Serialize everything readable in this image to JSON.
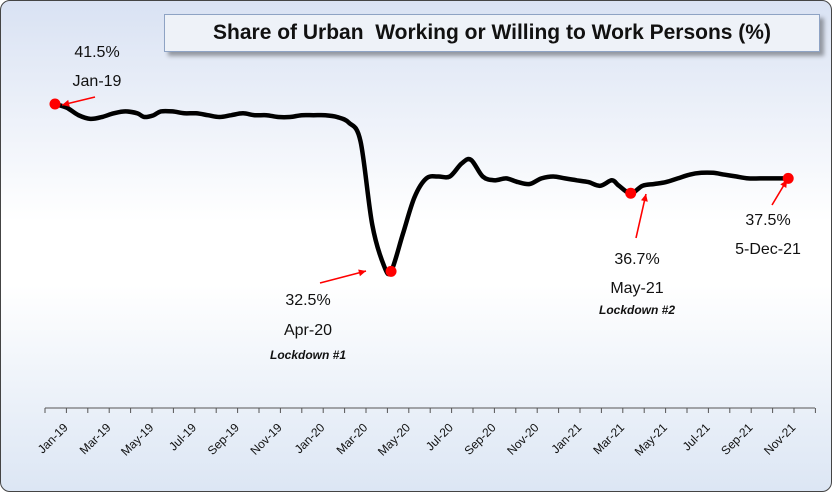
{
  "chart_data": {
    "type": "line",
    "title": "Share of Urban  Working or Willing to Work Persons (%)",
    "xlabel": "",
    "ylabel": "",
    "ylim": [
      30,
      45
    ],
    "x_tick_labels": [
      "Jan-19",
      "Mar-19",
      "May-19",
      "Jul-19",
      "Sep-19",
      "Nov-19",
      "Jan-20",
      "Mar-20",
      "May-20",
      "Jul-20",
      "Sep-20",
      "Nov-20",
      "Jan-21",
      "Mar-21",
      "May-21",
      "Jul-21",
      "Sep-21",
      "Nov-21"
    ],
    "series": [
      {
        "name": "Share of Urban Working or Willing to Work Persons (%)",
        "color": "#000000",
        "points": [
          {
            "m": 0.0,
            "v": 41.5
          },
          {
            "m": 0.5,
            "v": 41.3
          },
          {
            "m": 1.0,
            "v": 40.9
          },
          {
            "m": 1.5,
            "v": 40.7
          },
          {
            "m": 2.0,
            "v": 40.8
          },
          {
            "m": 2.5,
            "v": 41.0
          },
          {
            "m": 3.0,
            "v": 41.1
          },
          {
            "m": 3.5,
            "v": 41.0
          },
          {
            "m": 3.8,
            "v": 40.8
          },
          {
            "m": 4.2,
            "v": 40.9
          },
          {
            "m": 4.5,
            "v": 41.1
          },
          {
            "m": 5.0,
            "v": 41.1
          },
          {
            "m": 5.5,
            "v": 41.0
          },
          {
            "m": 6.0,
            "v": 41.0
          },
          {
            "m": 6.5,
            "v": 40.9
          },
          {
            "m": 7.0,
            "v": 40.8
          },
          {
            "m": 7.5,
            "v": 40.9
          },
          {
            "m": 8.0,
            "v": 41.0
          },
          {
            "m": 8.5,
            "v": 40.9
          },
          {
            "m": 9.0,
            "v": 40.9
          },
          {
            "m": 9.5,
            "v": 40.8
          },
          {
            "m": 10.0,
            "v": 40.8
          },
          {
            "m": 10.5,
            "v": 40.9
          },
          {
            "m": 11.0,
            "v": 40.9
          },
          {
            "m": 11.5,
            "v": 40.9
          },
          {
            "m": 12.0,
            "v": 40.8
          },
          {
            "m": 12.5,
            "v": 40.5
          },
          {
            "m": 13.0,
            "v": 39.5
          },
          {
            "m": 13.5,
            "v": 35.0
          },
          {
            "m": 14.0,
            "v": 32.8
          },
          {
            "m": 14.3,
            "v": 32.5
          },
          {
            "m": 14.8,
            "v": 34.5
          },
          {
            "m": 15.3,
            "v": 36.5
          },
          {
            "m": 15.8,
            "v": 37.5
          },
          {
            "m": 16.3,
            "v": 37.6
          },
          {
            "m": 16.8,
            "v": 37.6
          },
          {
            "m": 17.3,
            "v": 38.3
          },
          {
            "m": 17.7,
            "v": 38.5
          },
          {
            "m": 18.2,
            "v": 37.6
          },
          {
            "m": 18.7,
            "v": 37.4
          },
          {
            "m": 19.2,
            "v": 37.5
          },
          {
            "m": 19.7,
            "v": 37.3
          },
          {
            "m": 20.2,
            "v": 37.2
          },
          {
            "m": 20.7,
            "v": 37.5
          },
          {
            "m": 21.2,
            "v": 37.6
          },
          {
            "m": 21.7,
            "v": 37.5
          },
          {
            "m": 22.2,
            "v": 37.4
          },
          {
            "m": 22.7,
            "v": 37.3
          },
          {
            "m": 23.2,
            "v": 37.1
          },
          {
            "m": 23.7,
            "v": 37.4
          },
          {
            "m": 24.0,
            "v": 37.1
          },
          {
            "m": 24.5,
            "v": 36.7
          },
          {
            "m": 25.0,
            "v": 37.1
          },
          {
            "m": 25.5,
            "v": 37.2
          },
          {
            "m": 26.0,
            "v": 37.3
          },
          {
            "m": 26.5,
            "v": 37.5
          },
          {
            "m": 27.0,
            "v": 37.7
          },
          {
            "m": 27.5,
            "v": 37.8
          },
          {
            "m": 28.0,
            "v": 37.8
          },
          {
            "m": 28.5,
            "v": 37.7
          },
          {
            "m": 29.0,
            "v": 37.6
          },
          {
            "m": 29.5,
            "v": 37.5
          },
          {
            "m": 30.0,
            "v": 37.5
          },
          {
            "m": 30.5,
            "v": 37.5
          },
          {
            "m": 31.0,
            "v": 37.5
          },
          {
            "m": 31.2,
            "v": 37.5
          }
        ]
      }
    ],
    "highlights": [
      {
        "m": 0.0,
        "v": 41.5,
        "value_label": "41.5%",
        "date_label": "Jan-19",
        "note": ""
      },
      {
        "m": 14.3,
        "v": 32.5,
        "value_label": "32.5%",
        "date_label": "Apr-20",
        "note": "Lockdown #1"
      },
      {
        "m": 24.5,
        "v": 36.7,
        "value_label": "36.7%",
        "date_label": "May-21",
        "note": "Lockdown #2"
      },
      {
        "m": 31.2,
        "v": 37.5,
        "value_label": "37.5%",
        "date_label": "5-Dec-21",
        "note": ""
      }
    ],
    "colors": {
      "line": "#000000",
      "marker": "#ff0000",
      "arrow": "#ff0000"
    }
  }
}
